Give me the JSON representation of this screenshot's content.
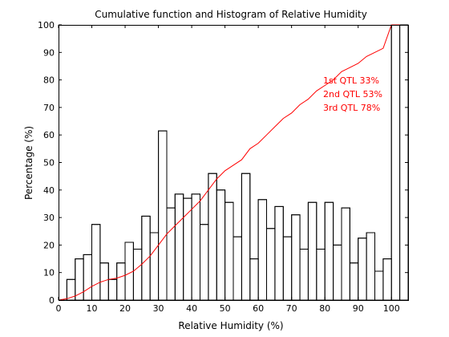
{
  "chart_data": {
    "type": "histogram",
    "title": "Cumulative function and Histogram of Relative Humidity",
    "xlabel": "Relative Humidity (%)",
    "ylabel": "Percentage (%)",
    "xlim": [
      0,
      105
    ],
    "ylim": [
      0,
      100
    ],
    "xticks": [
      "0",
      "10",
      "20",
      "30",
      "40",
      "50",
      "60",
      "70",
      "80",
      "90",
      "100"
    ],
    "yticks": [
      "0",
      "10",
      "20",
      "30",
      "40",
      "50",
      "60",
      "70",
      "80",
      "90",
      "100"
    ],
    "grid": false,
    "colors": {
      "histogram": "#000000",
      "cumulative": "#ff0000",
      "annotation": "#ff0000"
    },
    "series": [
      {
        "kind": "histogram-steps",
        "bin_edges": [
          0,
          2.5,
          5,
          7.5,
          10,
          12.5,
          15,
          17.5,
          20,
          22.5,
          25,
          27.5,
          30,
          32.5,
          35,
          37.5,
          40,
          42.5,
          45,
          47.5,
          50,
          52.5,
          55,
          57.5,
          60,
          62.5,
          65,
          67.5,
          70,
          72.5,
          75,
          77.5,
          80,
          82.5,
          85,
          87.5,
          90,
          92.5,
          95,
          97.5,
          100,
          102.5,
          105
        ],
        "values": [
          0,
          7.5,
          15,
          16.5,
          27.5,
          13.5,
          7.5,
          13.5,
          21,
          18.5,
          30.5,
          24.5,
          61.5,
          33.5,
          38.5,
          37,
          38.5,
          27.5,
          46,
          40,
          35.5,
          23,
          46,
          15,
          36.5,
          26,
          34,
          23,
          31,
          18.5,
          35.5,
          18.5,
          35.5,
          20,
          33.5,
          13.5,
          22.5,
          24.5,
          10.5,
          15,
          100,
          100
        ]
      },
      {
        "kind": "cumulative-line",
        "x": [
          0,
          2.5,
          5,
          7.5,
          10,
          12.5,
          15,
          17.5,
          20,
          22.5,
          25,
          27.5,
          30,
          32.5,
          35,
          37.5,
          40,
          42.5,
          45,
          47.5,
          50,
          52.5,
          55,
          57.5,
          60,
          62.5,
          65,
          67.5,
          70,
          72.5,
          75,
          77.5,
          80,
          82.5,
          85,
          87.5,
          90,
          92.5,
          95,
          97.5,
          100,
          102.5
        ],
        "y": [
          0,
          0.5,
          1.5,
          3,
          5,
          6.5,
          7.5,
          8,
          9,
          10.5,
          13,
          16,
          20,
          24,
          27,
          30,
          33,
          36,
          40,
          44,
          47,
          49,
          51,
          55,
          57,
          60,
          63,
          66,
          68,
          71,
          73,
          76,
          78,
          80,
          83,
          84.5,
          86,
          88.5,
          90,
          91.5,
          100,
          100
        ]
      }
    ],
    "annotations": [
      "1st QTL  33%",
      "2nd QTL  53%",
      "3rd QTL  78%"
    ]
  }
}
